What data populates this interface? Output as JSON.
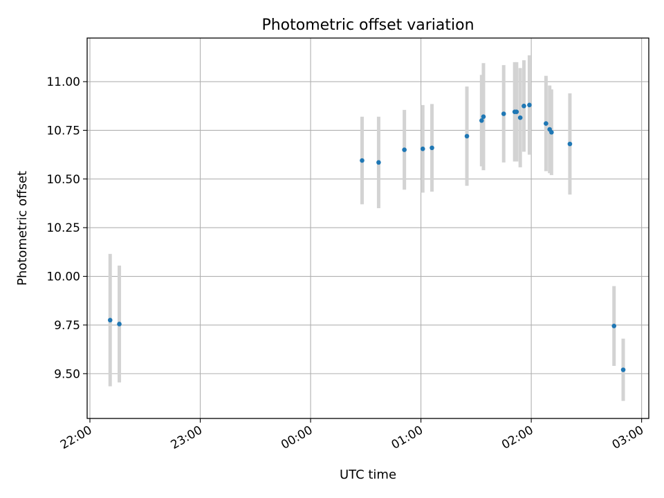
{
  "chart_data": {
    "type": "scatter",
    "title": "Photometric offset variation",
    "xlabel": "UTC time",
    "ylabel": "Photometric offset",
    "x_axis_kind": "time",
    "x_tick_labels": [
      "22:00",
      "23:00",
      "00:00",
      "01:00",
      "02:00",
      "03:00"
    ],
    "x_tick_minutes": [
      0,
      60,
      120,
      180,
      240,
      300
    ],
    "xlim_minutes": [
      -1.5,
      303.9
    ],
    "y_ticks": [
      9.5,
      9.75,
      10.0,
      10.25,
      10.5,
      10.75,
      11.0
    ],
    "y_tick_labels": [
      "9.50",
      "9.75",
      "10.00",
      "10.25",
      "10.50",
      "10.75",
      "11.00"
    ],
    "ylim": [
      9.27,
      11.224
    ],
    "grid": true,
    "marker_color": "#1f77b4",
    "errorbar_color": "#d3d3d3",
    "points": [
      {
        "time": "22:11",
        "y": 9.775,
        "err": 0.34
      },
      {
        "time": "22:16",
        "y": 9.755,
        "err": 0.3
      },
      {
        "time": "00:28",
        "y": 10.595,
        "err": 0.225
      },
      {
        "time": "00:37",
        "y": 10.585,
        "err": 0.235
      },
      {
        "time": "00:51",
        "y": 10.65,
        "err": 0.205
      },
      {
        "time": "01:01",
        "y": 10.655,
        "err": 0.225
      },
      {
        "time": "01:06",
        "y": 10.66,
        "err": 0.225
      },
      {
        "time": "01:25",
        "y": 10.72,
        "err": 0.255
      },
      {
        "time": "01:33",
        "y": 10.8,
        "err": 0.235
      },
      {
        "time": "01:34",
        "y": 10.82,
        "err": 0.275
      },
      {
        "time": "01:45",
        "y": 10.835,
        "err": 0.25
      },
      {
        "time": "01:51",
        "y": 10.845,
        "err": 0.255
      },
      {
        "time": "01:52",
        "y": 10.845,
        "err": 0.255
      },
      {
        "time": "01:54",
        "y": 10.815,
        "err": 0.255
      },
      {
        "time": "01:56",
        "y": 10.875,
        "err": 0.235
      },
      {
        "time": "01:59",
        "y": 10.88,
        "err": 0.255
      },
      {
        "time": "02:08",
        "y": 10.785,
        "err": 0.245
      },
      {
        "time": "02:10",
        "y": 10.755,
        "err": 0.225
      },
      {
        "time": "02:11",
        "y": 10.74,
        "err": 0.22
      },
      {
        "time": "02:21",
        "y": 10.68,
        "err": 0.26
      },
      {
        "time": "02:45",
        "y": 9.745,
        "err": 0.205
      },
      {
        "time": "02:50",
        "y": 9.52,
        "err": 0.16
      }
    ]
  }
}
